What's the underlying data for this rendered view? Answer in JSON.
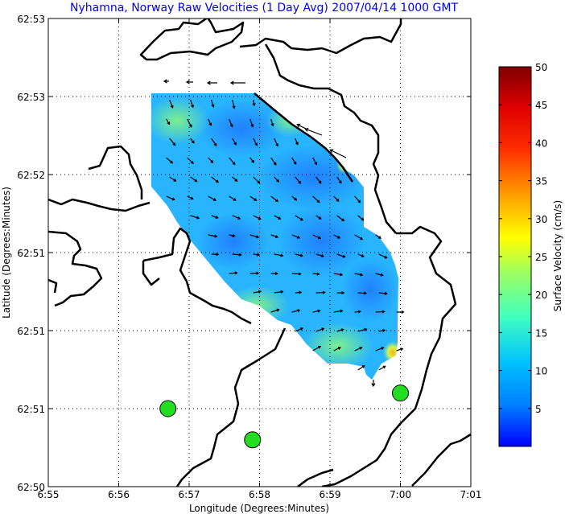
{
  "chart_data": {
    "type": "heatmap",
    "title": "Nyhamna, Norway Raw Velocities (1 Day Avg) 2007/04/14 1000 GMT",
    "xlabel": "Longitude (Degrees:Minutes)",
    "ylabel": "Latitude (Degrees:Minutes)",
    "x_ticks": [
      "6:55",
      "6:56",
      "6:57",
      "6:58",
      "6:59",
      "7:00",
      "7:01"
    ],
    "y_ticks": [
      "62:50",
      "62:51",
      "62:51",
      "62:51",
      "62:52",
      "62:53",
      "62:53"
    ],
    "grid": true,
    "colorbar": {
      "label": "Surface Velocity (cm/s)",
      "ticks": [
        "5",
        "10",
        "15",
        "20",
        "25",
        "30",
        "35",
        "40",
        "45",
        "50"
      ],
      "range": [
        0,
        50
      ],
      "colormap": "jet"
    },
    "velocity_field_cm_s": {
      "typical_min": 3,
      "typical_max": 15,
      "nearshore_max": 25,
      "notes": "Low speeds (3-8 cm/s) through the central channel, higher speeds (10-15 cm/s) along the edges, yellow/orange patches (20-28 cm/s) near the northeast and southeast corners"
    },
    "site_markers": [
      {
        "lon": "6:56.7",
        "lat": "62:51.0"
      },
      {
        "lon": "6:57.9",
        "lat": "62:50.8"
      },
      {
        "lon": "7:00.0",
        "lat": "62:51.1"
      }
    ],
    "marker_color": "#22dd22"
  }
}
